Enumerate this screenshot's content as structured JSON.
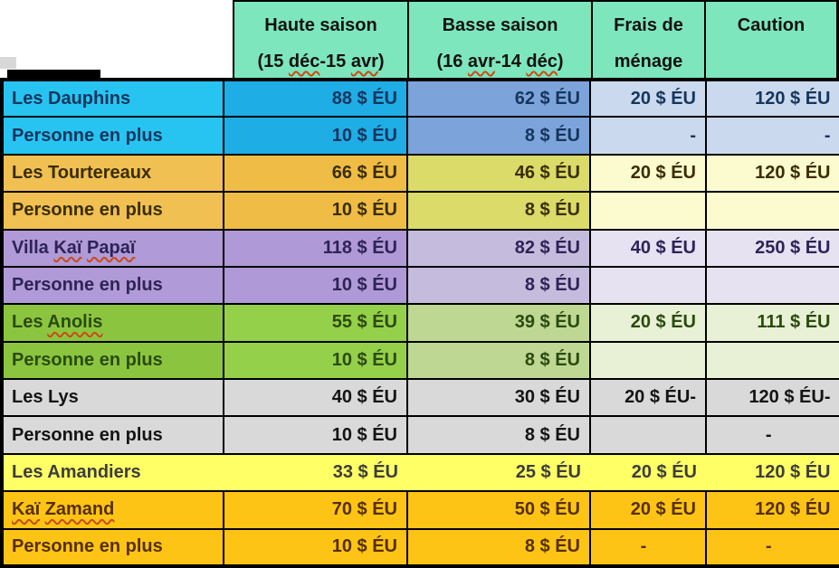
{
  "palette": {
    "header_bg": "#7DE6BC",
    "header_text": "#111111",
    "grid_line": "#000000",
    "squiggle": "#CC4A14",
    "page_bg": "#FFFFFF"
  },
  "header": {
    "columns": [
      {
        "id": "haute-saison",
        "line1": "Haute saison",
        "line2": "(15 déc-15 avr)",
        "squiggles": [
          "déc",
          "avr"
        ]
      },
      {
        "id": "basse-saison",
        "line1": "Basse saison",
        "line2": "(16 avr-14 déc)",
        "squiggles": [
          "avr",
          "déc"
        ]
      },
      {
        "id": "frais-menage",
        "line1": "Frais de",
        "line2": "ménage",
        "squiggles": []
      },
      {
        "id": "caution",
        "line1": "Caution",
        "line2": "",
        "squiggles": []
      }
    ]
  },
  "chart_data": {
    "type": "table",
    "title": "",
    "columns": [
      "",
      "Haute saison (15 déc-15 avr)",
      "Basse saison (16 avr-14 déc)",
      "Frais de ménage",
      "Caution"
    ],
    "rows": [
      [
        "Les Dauphins",
        "88 $ ÉU",
        "62 $ ÉU",
        "20 $ ÉU",
        "120 $ ÉU"
      ],
      [
        "Personne en plus",
        "10 $ ÉU",
        "8 $ ÉU",
        "-",
        "-"
      ],
      [
        "Les Tourtereaux",
        "66 $ ÉU",
        "46 $ ÉU",
        "20 $ ÉU",
        "120 $ ÉU"
      ],
      [
        "Personne en plus",
        "10 $ ÉU",
        "8 $ ÉU",
        "",
        ""
      ],
      [
        "Villa Kaï Papaï",
        "118 $ ÉU",
        "82 $ ÉU",
        "40 $ ÉU",
        "250 $ ÉU"
      ],
      [
        "Personne en plus",
        "10 $ ÉU",
        "8 $ ÉU",
        "",
        ""
      ],
      [
        "Les Anolis",
        "55 $ ÉU",
        "39 $ ÉU",
        "20 $ ÉU",
        "111 $ ÉU"
      ],
      [
        "Personne en plus",
        "10 $ ÉU",
        "8 $ ÉU",
        "",
        ""
      ],
      [
        "Les Lys",
        "40 $ ÉU",
        "30 $ ÉU",
        "20 $ ÉU-",
        "120 $ ÉU-"
      ],
      [
        "Personne en plus",
        "10 $ ÉU",
        "8 $ ÉU",
        "",
        "-"
      ],
      [
        "Les Amandiers",
        "33 $ ÉU",
        "25 $ ÉU",
        "20 $ ÉU",
        "120 $ ÉU"
      ],
      [
        "Kaï Zamand",
        "70 $ ÉU",
        "50 $ ÉU",
        "20 $ ÉU",
        "120 $ ÉU"
      ],
      [
        "Personne en plus",
        "10 $ ÉU",
        "8 $ ÉU",
        "-",
        "-"
      ]
    ]
  },
  "row_styles": [
    {
      "text": "#15355C",
      "bg": [
        "#27C4F2",
        "#1FADE6",
        "#7DA4DA",
        "#CBD9EE",
        "#CBD9EE"
      ],
      "squiggles": []
    },
    {
      "text": "#15355C",
      "bg": [
        "#27C4F2",
        "#1FADE6",
        "#7DA4DA",
        "#CBD9EE",
        "#CBD9EE"
      ],
      "squiggles": []
    },
    {
      "text": "#3A2D00",
      "bg": [
        "#F0C052",
        "#EFBD45",
        "#DADB68",
        "#FBFBCF",
        "#FBFBCF"
      ],
      "squiggles": []
    },
    {
      "text": "#3A2D00",
      "bg": [
        "#F0C052",
        "#EFBD45",
        "#DADB68",
        "#FBFBCF",
        "#FBFBCF"
      ],
      "squiggles": []
    },
    {
      "text": "#2E2357",
      "bg": [
        "#B09AD7",
        "#AF99D6",
        "#C5BBDD",
        "#E6E2F1",
        "#E6E2F1"
      ],
      "squiggles": [
        "Kaï",
        "Papaï"
      ]
    },
    {
      "text": "#2E2357",
      "bg": [
        "#B09AD7",
        "#AF99D6",
        "#C5BBDD",
        "#E6E2F1",
        "#E6E2F1"
      ],
      "squiggles": []
    },
    {
      "text": "#2B4A0D",
      "bg": [
        "#8BC53F",
        "#95D04A",
        "#BED893",
        "#E8F0D5",
        "#E8F0D5"
      ],
      "squiggles": [
        "Anolis"
      ]
    },
    {
      "text": "#2B4A0D",
      "bg": [
        "#8BC53F",
        "#95D04A",
        "#BED893",
        "#E8F0D5",
        "#E8F0D5"
      ],
      "squiggles": []
    },
    {
      "text": "#141414",
      "bg": [
        "#D9D9D9",
        "#D9D9D9",
        "#D9D9D9",
        "#D9D9D9",
        "#D9D9D9"
      ],
      "squiggles": []
    },
    {
      "text": "#141414",
      "bg": [
        "#D9D9D9",
        "#D9D9D9",
        "#D9D9D9",
        "#D9D9D9",
        "#D9D9D9"
      ],
      "squiggles": [],
      "aligns": [
        "",
        "",
        "",
        "",
        "center"
      ]
    },
    {
      "text": "#3D3D3D",
      "bg": [
        "#FFFF66",
        "#FFFF66",
        "#FFFF66",
        "#FFFF66",
        "#FFFF66"
      ],
      "squiggles": [],
      "no_inner_borders": true
    },
    {
      "text": "#552F00",
      "bg": [
        "#FEC415",
        "#FEC415",
        "#FEC415",
        "#FEC415",
        "#FEC415"
      ],
      "squiggles": [
        "Kaï",
        "Zamand"
      ]
    },
    {
      "text": "#552F00",
      "bg": [
        "#FEC415",
        "#FEC415",
        "#FEC415",
        "#FEC415",
        "#FEC415"
      ],
      "squiggles": [],
      "aligns": [
        "",
        "",
        "",
        "center",
        "center"
      ]
    }
  ]
}
